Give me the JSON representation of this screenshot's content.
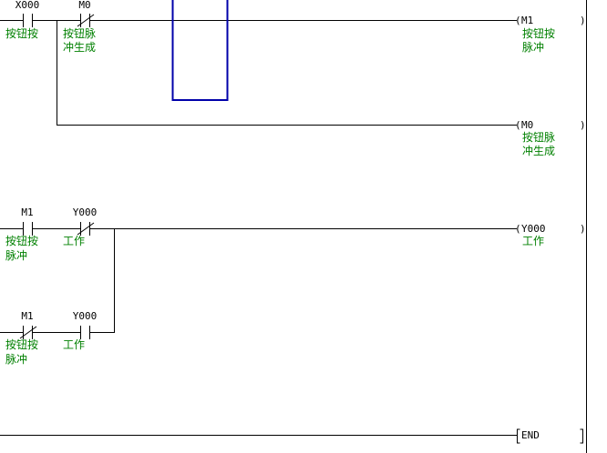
{
  "colors": {
    "wire": "#000000",
    "comment": "#008000",
    "selection": "#0000aa"
  },
  "rungs": [
    {
      "contacts": [
        {
          "device": "X000",
          "type": "normally-open",
          "comment": [
            "按钮按"
          ]
        },
        {
          "device": "M0",
          "type": "normally-closed",
          "comment": [
            "按钮脉",
            "冲生成"
          ]
        }
      ],
      "coil": {
        "device": "M1",
        "comment": [
          "按钮按",
          "脉冲"
        ]
      }
    },
    {
      "branch": true,
      "coil": {
        "device": "M0",
        "comment": [
          "按钮脉",
          "冲生成"
        ]
      }
    },
    {
      "contacts": [
        {
          "device": "M1",
          "type": "normally-open",
          "comment": [
            "按钮按",
            "脉冲"
          ]
        },
        {
          "device": "Y000",
          "type": "normally-closed",
          "comment": [
            "工作"
          ]
        }
      ],
      "coil": {
        "device": "Y000",
        "comment": [
          "工作"
        ]
      }
    },
    {
      "contacts": [
        {
          "device": "M1",
          "type": "normally-closed",
          "comment": [
            "按钮按",
            "脉冲"
          ]
        },
        {
          "device": "Y000",
          "type": "normally-open",
          "comment": [
            "工作"
          ]
        }
      ]
    },
    {
      "instruction": "END"
    }
  ]
}
